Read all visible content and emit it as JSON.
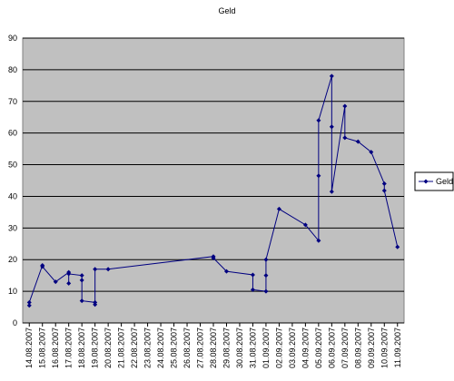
{
  "chart_data": {
    "type": "line",
    "title": "Geld",
    "xticks": [
      "14.08.2007",
      "15.08.2007",
      "16.08.2007",
      "17.08.2007",
      "18.08.2007",
      "19.08.2007",
      "20.08.2007",
      "21.08.2007",
      "22.08.2007",
      "23.08.2007",
      "24.08.2007",
      "25.08.2007",
      "26.08.2007",
      "27.08.2007",
      "28.08.2007",
      "29.08.2007",
      "30.08.2007",
      "31.08.2007",
      "01.09.2007",
      "02.09.2007",
      "03.09.2007",
      "04.09.2007",
      "05.09.2007",
      "06.09.2007",
      "07.09.2007",
      "08.09.2007",
      "09.09.2007",
      "10.09.2007",
      "11.09.2007"
    ],
    "x": [
      "14.08.2007",
      "14.08.2007",
      "15.08.2007",
      "15.08.2007",
      "16.08.2007",
      "17.08.2007",
      "17.08.2007",
      "17.08.2007",
      "18.08.2007",
      "18.08.2007",
      "18.08.2007",
      "19.08.2007",
      "19.08.2007",
      "19.08.2007",
      "20.08.2007",
      "28.08.2007",
      "28.08.2007",
      "29.08.2007",
      "31.08.2007",
      "31.08.2007",
      "01.09.2007",
      "01.09.2007",
      "01.09.2007",
      "02.09.2007",
      "04.09.2007",
      "05.09.2007",
      "05.09.2007",
      "05.09.2007",
      "06.09.2007",
      "06.09.2007",
      "06.09.2007",
      "07.09.2007",
      "07.09.2007",
      "08.09.2007",
      "09.09.2007",
      "10.09.2007",
      "10.09.2007",
      "11.09.2007"
    ],
    "series": [
      {
        "name": "Geld",
        "color": "#000080",
        "values": [
          5.5,
          6.5,
          18.2,
          17.8,
          13,
          16,
          12.5,
          15.5,
          15,
          13.5,
          7,
          6.5,
          5.8,
          17,
          17,
          21,
          20.5,
          16.3,
          15.2,
          10.5,
          10,
          15,
          20,
          36,
          31,
          26,
          46.5,
          64,
          78,
          62,
          41.5,
          68.5,
          58.5,
          57.3,
          54,
          44,
          41.8,
          24
        ]
      }
    ],
    "ylim": [
      0,
      90
    ],
    "yticks": [
      0,
      10,
      20,
      30,
      40,
      50,
      60,
      70,
      80,
      90
    ],
    "grid": true,
    "legend": "right"
  }
}
